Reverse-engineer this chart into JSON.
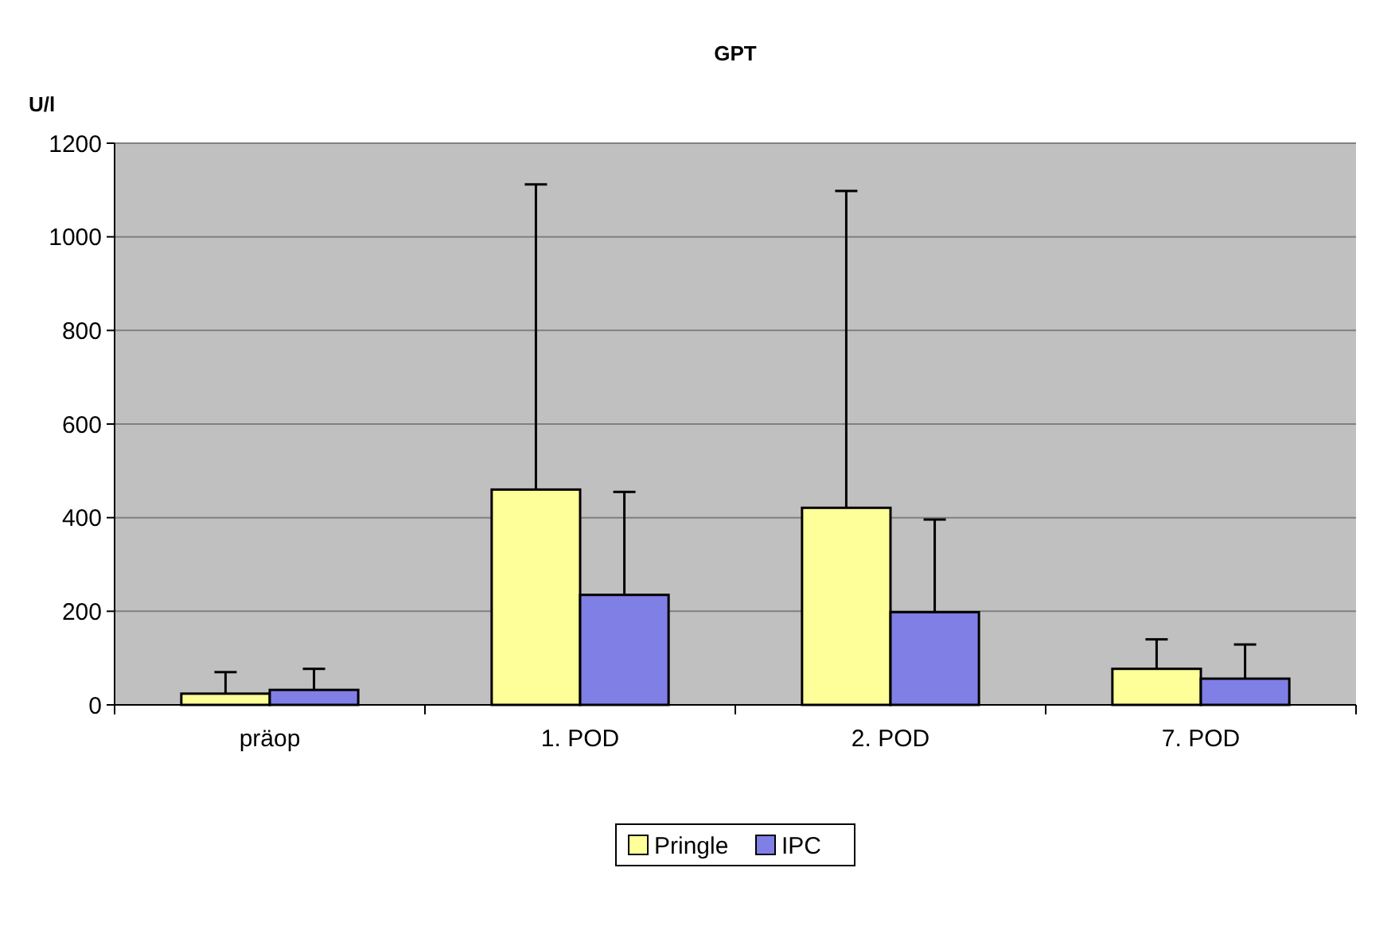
{
  "chart_data": {
    "type": "bar",
    "title": "GPT",
    "ylabel": "U/l",
    "categories": [
      "präop",
      "1. POD",
      "2. POD",
      "7. POD"
    ],
    "series": [
      {
        "name": "Pringle",
        "color": "#ffff99",
        "values": [
          24,
          460,
          421,
          77
        ],
        "errors": [
          [
            24,
            70
          ],
          [
            460,
            1112
          ],
          [
            421,
            1098
          ],
          [
            77,
            140
          ]
        ]
      },
      {
        "name": "IPC",
        "color": "#7f7fe6",
        "values": [
          32,
          235,
          198,
          56
        ],
        "errors": [
          [
            32,
            77
          ],
          [
            235,
            455
          ],
          [
            198,
            396
          ],
          [
            56,
            129
          ]
        ]
      }
    ],
    "ylim": [
      0,
      1200
    ],
    "yticks": [
      0,
      200,
      400,
      600,
      800,
      1000,
      1200
    ],
    "grid": "y",
    "legend": "bottom"
  }
}
